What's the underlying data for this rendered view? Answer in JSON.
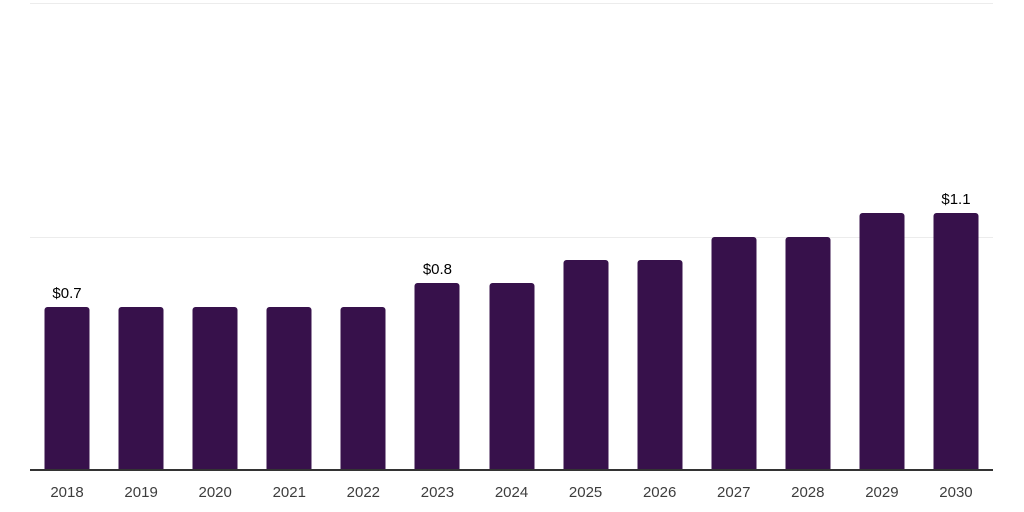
{
  "chart_data": {
    "type": "bar",
    "title": "",
    "xlabel": "",
    "ylabel": "",
    "categories": [
      "2018",
      "2019",
      "2020",
      "2021",
      "2022",
      "2023",
      "2024",
      "2025",
      "2026",
      "2027",
      "2028",
      "2029",
      "2030"
    ],
    "values": [
      0.7,
      0.7,
      0.7,
      0.7,
      0.7,
      0.8,
      0.8,
      0.9,
      0.9,
      1.0,
      1.0,
      1.1,
      1.1
    ],
    "data_labels": [
      "$0.7",
      "",
      "",
      "",
      "",
      "$0.8",
      "",
      "",
      "",
      "",
      "",
      "",
      "$1.1"
    ],
    "ylim": [
      0,
      2.0
    ],
    "gridline_values": [
      1.0,
      2.0
    ],
    "grid": "horizontal",
    "legend": "none",
    "colors": {
      "bar": "#37114B",
      "data_label": "#000000",
      "tick_label": "#3d3d3d",
      "gridline": "#ececec",
      "axis_line": "#333333",
      "background": "#ffffff"
    }
  }
}
